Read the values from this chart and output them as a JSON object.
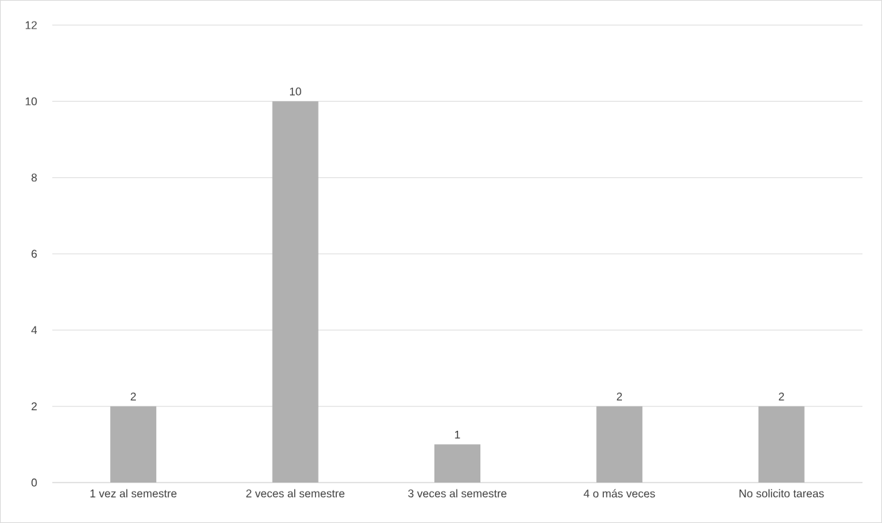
{
  "chart_data": {
    "type": "bar",
    "categories": [
      "1 vez al semestre",
      "2 veces al semestre",
      "3 veces al semestre",
      "4 o más veces",
      "No solicito tareas"
    ],
    "values": [
      2,
      10,
      1,
      2,
      2
    ],
    "color": "#b0b0b0",
    "ylim": [
      0,
      12
    ],
    "yticks": [
      0,
      2,
      4,
      6,
      8,
      10,
      12
    ],
    "grid": "y",
    "data_labels": true
  }
}
